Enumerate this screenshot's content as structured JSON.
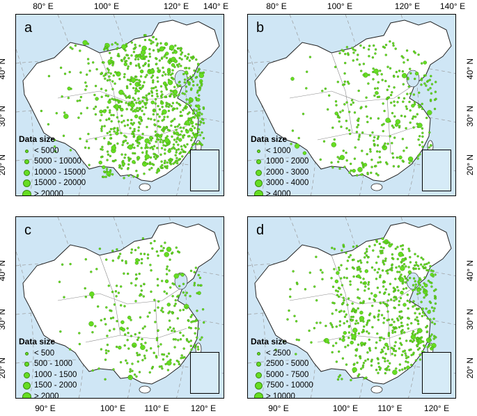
{
  "axes": {
    "top_labels": [
      "80° E",
      "100° E",
      "120° E",
      "140° E"
    ],
    "bottom_labels": [
      "90° E",
      "100° E",
      "110° E",
      "120° E"
    ],
    "left_labels": [
      "40° N",
      "30° N",
      "20° N"
    ],
    "right_labels": [
      "40° N",
      "30° N",
      "20° N"
    ]
  },
  "colors": {
    "ocean": "#cfe6f5",
    "land": "#ffffff",
    "dot_fill": "#66dd22",
    "dot_stroke": "#3a8a10",
    "border": "#555555"
  },
  "panels": [
    {
      "letter": "a",
      "legend_title": "Data size",
      "legend": [
        "< 5000",
        "5000 - 10000",
        "10000 - 15000",
        "15000 - 20000",
        "> 20000"
      ],
      "density": 900
    },
    {
      "letter": "b",
      "legend_title": "Data size",
      "legend": [
        "< 1000",
        "1000 - 2000",
        "2000 - 3000",
        "3000 - 4000",
        "> 4000"
      ],
      "density": 330
    },
    {
      "letter": "c",
      "legend_title": "Data size",
      "legend": [
        "< 500",
        "500 - 1000",
        "1000 - 1500",
        "1500 - 2000",
        "> 2000"
      ],
      "density": 300
    },
    {
      "letter": "d",
      "legend_title": "Data size",
      "legend": [
        "< 2500",
        "2500 - 5000",
        "5000 - 7500",
        "7500 - 10000",
        "> 10000"
      ],
      "density": 650
    }
  ]
}
